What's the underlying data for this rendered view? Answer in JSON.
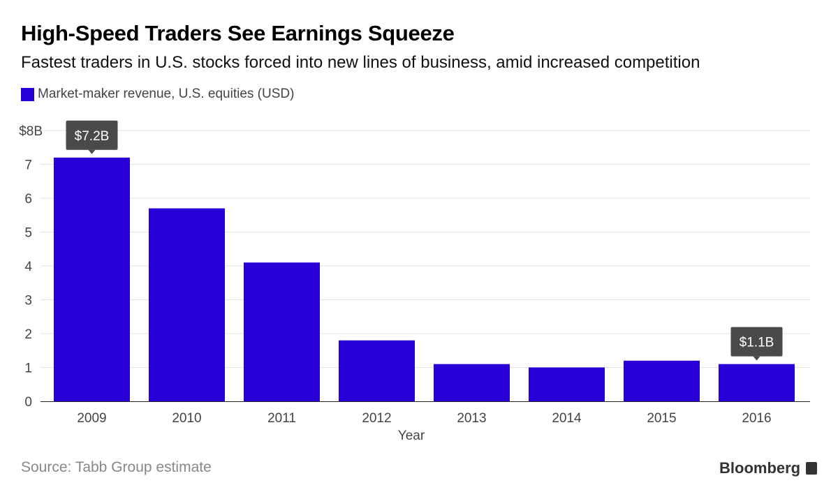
{
  "title": "High-Speed Traders See Earnings Squeeze",
  "subtitle": "Fastest traders in U.S. stocks forced into new lines of business, amid increased competition",
  "source": "Source: Tabb Group estimate",
  "brand": "Bloomberg",
  "chart_data": {
    "type": "bar",
    "categories": [
      "2009",
      "2010",
      "2011",
      "2012",
      "2013",
      "2014",
      "2015",
      "2016"
    ],
    "series": [
      {
        "name": "Market-maker revenue, U.S. equities (USD)",
        "values": [
          7.2,
          5.7,
          4.1,
          1.8,
          1.1,
          1.0,
          1.2,
          1.1
        ],
        "color": "#2a00d8"
      }
    ],
    "xlabel": "Year",
    "ylabel": "",
    "ylim": [
      0,
      8
    ],
    "yticks": [
      0,
      1,
      2,
      3,
      4,
      5,
      6,
      7,
      8
    ],
    "ytick_labels": [
      "0",
      "1",
      "2",
      "3",
      "4",
      "5",
      "6",
      "7",
      "$8B"
    ],
    "grid": true,
    "legend": "top-left",
    "annotations": [
      {
        "category": "2009",
        "text": "$7.2B"
      },
      {
        "category": "2016",
        "text": "$1.1B"
      }
    ]
  }
}
